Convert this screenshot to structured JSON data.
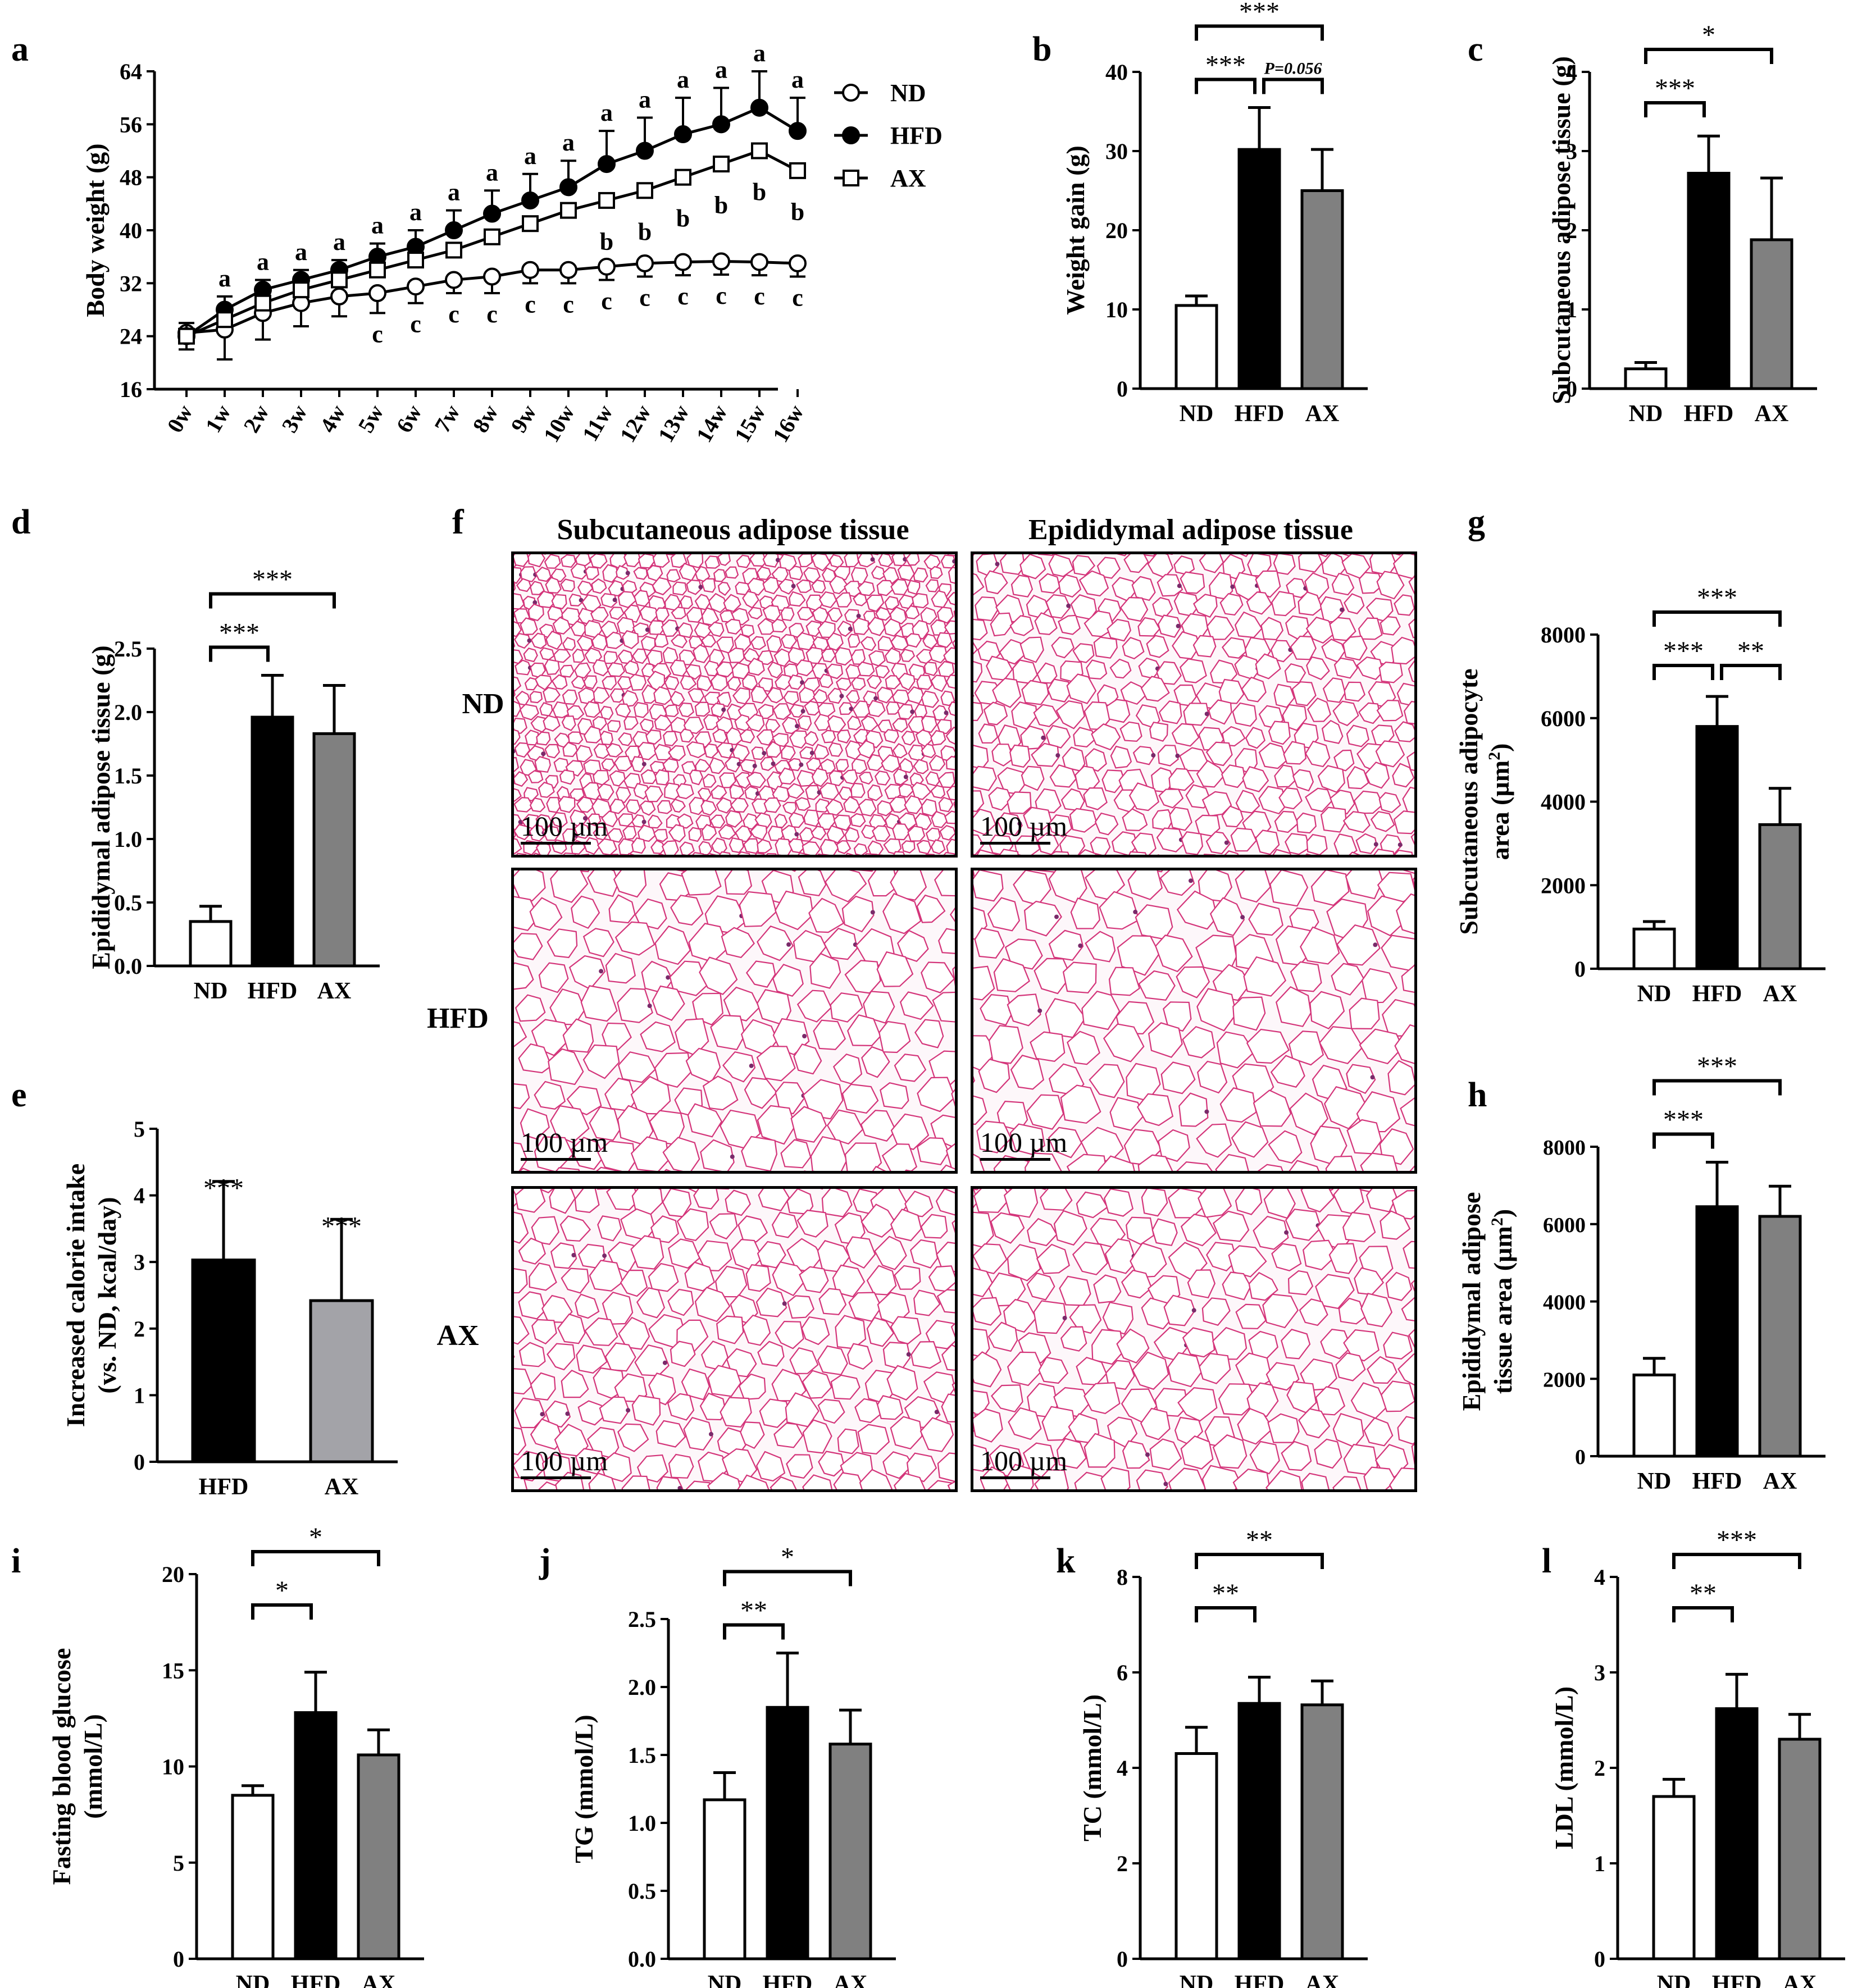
{
  "panel_letters": {
    "a": "a",
    "b": "b",
    "c": "c",
    "d": "d",
    "e": "e",
    "f": "f",
    "g": "g",
    "h": "h",
    "i": "i",
    "j": "j",
    "k": "k",
    "l": "l"
  },
  "groups": {
    "nd": "ND",
    "hfd": "HFD",
    "ax": "AX"
  },
  "colors": {
    "nd": "#ffffff",
    "hfd": "#000000",
    "ax": "#808080",
    "ax_e": "#a3a3a8",
    "stain": "#d4357a"
  },
  "histology": {
    "title_subcutaneous": "Subcutaneous adipose tissue",
    "title_epididymal": "Epididymal adipose tissue",
    "row_labels": [
      "ND",
      "HFD",
      "AX"
    ],
    "scale_label": "100 µm"
  },
  "chart_data": [
    {
      "id": "a",
      "type": "line",
      "ylabel": "Body weight (g)",
      "ylim": [
        16,
        64
      ],
      "yticks": [
        "16",
        "24",
        "32",
        "40",
        "48",
        "56",
        "64"
      ],
      "x": [
        "0w",
        "1w",
        "2w",
        "3w",
        "4w",
        "5w",
        "6w",
        "7w",
        "8w",
        "9w",
        "10w",
        "11w",
        "12w",
        "13w",
        "14w",
        "15w",
        "16w"
      ],
      "series": [
        {
          "name": "ND",
          "marker": "circle-open",
          "values": [
            24.5,
            25,
            27.5,
            29,
            30,
            30.5,
            31.5,
            32.5,
            33,
            34,
            34,
            34.5,
            35,
            35.2,
            35.3,
            35.2,
            35
          ],
          "errors": [
            2.5,
            4.5,
            4,
            3.5,
            3,
            3,
            2.5,
            2,
            2.5,
            2,
            2,
            2,
            2,
            2,
            2,
            2,
            2
          ]
        },
        {
          "name": "HFD",
          "marker": "circle-filled",
          "values": [
            24,
            28,
            31,
            32.5,
            34,
            36,
            37.5,
            40,
            42.5,
            44.5,
            46.5,
            50,
            52,
            54.5,
            56,
            58.5,
            55
          ],
          "errors": [
            2,
            2,
            1.5,
            1.5,
            1.5,
            2,
            2.5,
            3,
            3.5,
            4,
            4,
            5,
            5,
            5.5,
            5.5,
            5.5,
            5
          ]
        },
        {
          "name": "AX",
          "marker": "square-open",
          "values": [
            24,
            26.5,
            29,
            31,
            32.5,
            34,
            35.5,
            37,
            39,
            41,
            43,
            44.5,
            46,
            48,
            50,
            52,
            49
          ]
        }
      ],
      "sig_letters": [
        {
          "i": 1,
          "text": "a"
        },
        {
          "i": 2,
          "text": "a"
        },
        {
          "i": 3,
          "text": "a"
        },
        {
          "i": 4,
          "text": "a"
        },
        {
          "i": 5,
          "text": "a"
        },
        {
          "i": 6,
          "text": "a"
        },
        {
          "i": 7,
          "text": "a"
        },
        {
          "i": 8,
          "text": "a"
        },
        {
          "i": 9,
          "text": "a"
        },
        {
          "i": 10,
          "text": "a"
        },
        {
          "i": 11,
          "text": "a"
        },
        {
          "i": 12,
          "text": "a"
        },
        {
          "i": 13,
          "text": "a"
        },
        {
          "i": 14,
          "text": "a"
        },
        {
          "i": 15,
          "text": "a"
        },
        {
          "i": 16,
          "text": "a"
        }
      ],
      "b_letters": [
        11,
        12,
        13,
        14,
        15,
        16
      ],
      "c_letters": [
        5,
        6,
        7,
        8,
        9,
        10,
        11,
        12,
        13,
        14,
        15,
        16
      ],
      "legend": [
        "ND",
        "HFD",
        "AX"
      ]
    },
    {
      "id": "b",
      "type": "bar",
      "ylabel": "Weight gain (g)",
      "ylim": [
        0,
        40
      ],
      "yticks": [
        "0",
        "10",
        "20",
        "30",
        "40"
      ],
      "categories": [
        "ND",
        "HFD",
        "AX"
      ],
      "values": [
        10.5,
        30.2,
        25
      ],
      "errors": [
        1.2,
        5.3,
        5.2
      ],
      "brackets": [
        {
          "from": 0,
          "to": 1,
          "label": "***",
          "level": 1
        },
        {
          "from": 1,
          "to": 2,
          "label": "P=0.056",
          "level": 1,
          "italic": true
        },
        {
          "from": 0,
          "to": 2,
          "label": "***",
          "level": 2
        }
      ]
    },
    {
      "id": "c",
      "type": "bar",
      "ylabel": "Subcutaneous adipose tissue (g)",
      "ylim": [
        0,
        4
      ],
      "yticks": [
        "0",
        "1",
        "2",
        "3",
        "4"
      ],
      "categories": [
        "ND",
        "HFD",
        "AX"
      ],
      "values": [
        0.25,
        2.72,
        1.88
      ],
      "errors": [
        0.08,
        0.47,
        0.78
      ],
      "brackets": [
        {
          "from": 0,
          "to": 1,
          "label": "***",
          "level": 1
        },
        {
          "from": 0,
          "to": 2,
          "label": "*",
          "level": 2
        }
      ]
    },
    {
      "id": "d",
      "type": "bar",
      "ylabel": "Epididymal adipose tissue (g)",
      "ylim": [
        0,
        2.5
      ],
      "yticks": [
        "0.0",
        "0.5",
        "1.0",
        "1.5",
        "2.0",
        "2.5"
      ],
      "categories": [
        "ND",
        "HFD",
        "AX"
      ],
      "values": [
        0.35,
        1.96,
        1.83
      ],
      "errors": [
        0.12,
        0.33,
        0.38
      ],
      "brackets": [
        {
          "from": 0,
          "to": 1,
          "label": "***",
          "level": 1
        },
        {
          "from": 0,
          "to": 2,
          "label": "***",
          "level": 2
        }
      ]
    },
    {
      "id": "e",
      "type": "bar",
      "ylabel": "Increased calorie intake",
      "ylabel2": "(vs. ND, kcal/day)",
      "ylim": [
        0,
        5
      ],
      "yticks": [
        "0",
        "1",
        "2",
        "3",
        "4",
        "5"
      ],
      "categories": [
        "HFD",
        "AX"
      ],
      "values": [
        3.03,
        2.42
      ],
      "errors": [
        1.18,
        1.22
      ],
      "labels_over": [
        "***",
        "***"
      ]
    },
    {
      "id": "g",
      "type": "bar",
      "ylabel": "Subcutaneous adipocyte",
      "ylabel2": "area (µm",
      "ylabel2_sup": "2",
      "ylabel2_end": ")",
      "ylim": [
        0,
        8000
      ],
      "yticks": [
        "0",
        "2000",
        "4000",
        "6000",
        "8000"
      ],
      "categories": [
        "ND",
        "HFD",
        "AX"
      ],
      "values": [
        950,
        5800,
        3450
      ],
      "errors": [
        180,
        720,
        870
      ],
      "brackets": [
        {
          "from": 0,
          "to": 1,
          "label": "***",
          "level": 1
        },
        {
          "from": 1,
          "to": 2,
          "label": "**",
          "level": 1
        },
        {
          "from": 0,
          "to": 2,
          "label": "***",
          "level": 2
        }
      ]
    },
    {
      "id": "h",
      "type": "bar",
      "ylabel": "Epididymal adipose",
      "ylabel2": "tissue area (µm",
      "ylabel2_sup": "2",
      "ylabel2_end": ")",
      "ylim": [
        0,
        8000
      ],
      "yticks": [
        "0",
        "2000",
        "4000",
        "6000",
        "8000"
      ],
      "categories": [
        "ND",
        "HFD",
        "AX"
      ],
      "values": [
        2100,
        6450,
        6200
      ],
      "errors": [
        430,
        1150,
        780
      ],
      "brackets": [
        {
          "from": 0,
          "to": 1,
          "label": "***",
          "level": 1
        },
        {
          "from": 0,
          "to": 2,
          "label": "***",
          "level": 2
        }
      ]
    },
    {
      "id": "i",
      "type": "bar",
      "ylabel": "Fasting blood glucose",
      "ylabel2": "(mmol/L)",
      "ylim": [
        0,
        20
      ],
      "yticks": [
        "0",
        "5",
        "10",
        "15",
        "20"
      ],
      "categories": [
        "ND",
        "HFD",
        "AX"
      ],
      "values": [
        8.5,
        12.8,
        10.6
      ],
      "errors": [
        0.5,
        2.1,
        1.3
      ],
      "brackets": [
        {
          "from": 0,
          "to": 1,
          "label": "*",
          "level": 1
        },
        {
          "from": 0,
          "to": 2,
          "label": "*",
          "level": 2
        }
      ]
    },
    {
      "id": "j",
      "type": "bar",
      "ylabel": "TG (mmol/L)",
      "ylim": [
        0,
        2.5
      ],
      "yticks": [
        "0.0",
        "0.5",
        "1.0",
        "1.5",
        "2.0",
        "2.5"
      ],
      "categories": [
        "ND",
        "HFD",
        "AX"
      ],
      "values": [
        1.17,
        1.85,
        1.58
      ],
      "errors": [
        0.2,
        0.4,
        0.25
      ],
      "brackets": [
        {
          "from": 0,
          "to": 1,
          "label": "**",
          "level": 1
        },
        {
          "from": 0,
          "to": 2,
          "label": "*",
          "level": 2
        }
      ]
    },
    {
      "id": "k",
      "type": "bar",
      "ylabel": "TC (mmol/L)",
      "ylim": [
        0,
        8
      ],
      "yticks": [
        "0",
        "2",
        "4",
        "6",
        "8"
      ],
      "categories": [
        "ND",
        "HFD",
        "AX"
      ],
      "values": [
        4.3,
        5.35,
        5.32
      ],
      "errors": [
        0.55,
        0.55,
        0.5
      ],
      "brackets": [
        {
          "from": 0,
          "to": 1,
          "label": "**",
          "level": 1
        },
        {
          "from": 0,
          "to": 2,
          "label": "**",
          "level": 2
        }
      ]
    },
    {
      "id": "l",
      "type": "bar",
      "ylabel": "LDL (mmol/L)",
      "ylim": [
        0,
        4
      ],
      "yticks": [
        "0",
        "1",
        "2",
        "3",
        "4"
      ],
      "categories": [
        "ND",
        "HFD",
        "AX"
      ],
      "values": [
        1.7,
        2.62,
        2.3
      ],
      "errors": [
        0.18,
        0.36,
        0.26
      ],
      "brackets": [
        {
          "from": 0,
          "to": 1,
          "label": "**",
          "level": 1
        },
        {
          "from": 0,
          "to": 2,
          "label": "***",
          "level": 2
        }
      ]
    }
  ]
}
